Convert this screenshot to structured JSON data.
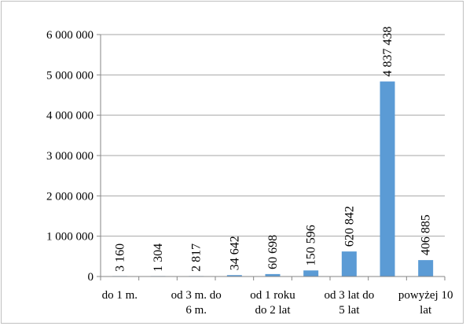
{
  "chart_data": {
    "type": "bar",
    "categories": [
      [
        "do 1 m."
      ],
      [
        ""
      ],
      [
        "od 3 m. do",
        "6 m."
      ],
      [
        ""
      ],
      [
        "od 1 roku",
        "do 2 lat"
      ],
      [
        ""
      ],
      [
        "od 3 lat do",
        "5 lat"
      ],
      [
        ""
      ],
      [
        "powyżej 10",
        "lat"
      ]
    ],
    "values": [
      3160,
      1304,
      2817,
      34642,
      60698,
      150596,
      620842,
      4837438,
      406885
    ],
    "data_labels": [
      "3 160",
      "1 304",
      "2 817",
      "34 642",
      "60 698",
      "150 596",
      "620 842",
      "4 837 438",
      "406 885"
    ],
    "yticks": [
      "0",
      "1 000 000",
      "2 000 000",
      "3 000 000",
      "4 000 000",
      "5 000 000",
      "6 000 000"
    ],
    "ylim": [
      0,
      6000000
    ],
    "grid": true,
    "legend": "none",
    "colors": {
      "bar": "#5b9bd5",
      "grid": "#a6a6a6",
      "axis": "#868686"
    }
  }
}
